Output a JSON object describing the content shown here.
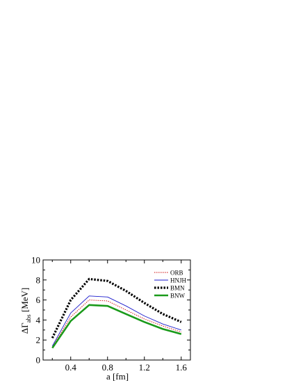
{
  "chart_data": {
    "type": "line",
    "title": "",
    "xlabel": "a [fm]",
    "ylabel_prefix": "ΔΓ",
    "ylabel_sub": "abs",
    "ylabel_suffix": " [MeV]",
    "xlim": [
      0.1,
      1.7
    ],
    "ylim": [
      0,
      10
    ],
    "xticks": [
      0.4,
      0.8,
      1.2,
      1.6
    ],
    "xtick_labels": [
      "0.4",
      "0.8",
      "1.2",
      "1.6"
    ],
    "yticks": [
      0,
      2,
      4,
      6,
      8,
      10
    ],
    "ytick_labels": [
      "0",
      "2",
      "4",
      "6",
      "8",
      "10"
    ],
    "grid": false,
    "legend_position": "top-right",
    "x": [
      0.2,
      0.4,
      0.6,
      0.8,
      1.0,
      1.2,
      1.4,
      1.6
    ],
    "series": [
      {
        "name": "ORB",
        "color": "#cc0000",
        "style": "dotted-thin",
        "values": [
          1.3,
          4.3,
          6.0,
          5.9,
          5.0,
          4.1,
          3.4,
          2.8
        ]
      },
      {
        "name": "HNJH",
        "color": "#1a1acc",
        "style": "solid-thin",
        "values": [
          1.4,
          4.7,
          6.4,
          6.3,
          5.4,
          4.4,
          3.6,
          3.0
        ]
      },
      {
        "name": "BMN",
        "color": "#000000",
        "style": "dotted-thick",
        "values": [
          2.2,
          6.0,
          8.1,
          7.9,
          6.9,
          5.7,
          4.6,
          3.8
        ]
      },
      {
        "name": "BNW",
        "color": "#1a9a1a",
        "style": "solid-thick",
        "values": [
          1.2,
          3.9,
          5.5,
          5.4,
          4.6,
          3.8,
          3.1,
          2.6
        ]
      }
    ]
  }
}
